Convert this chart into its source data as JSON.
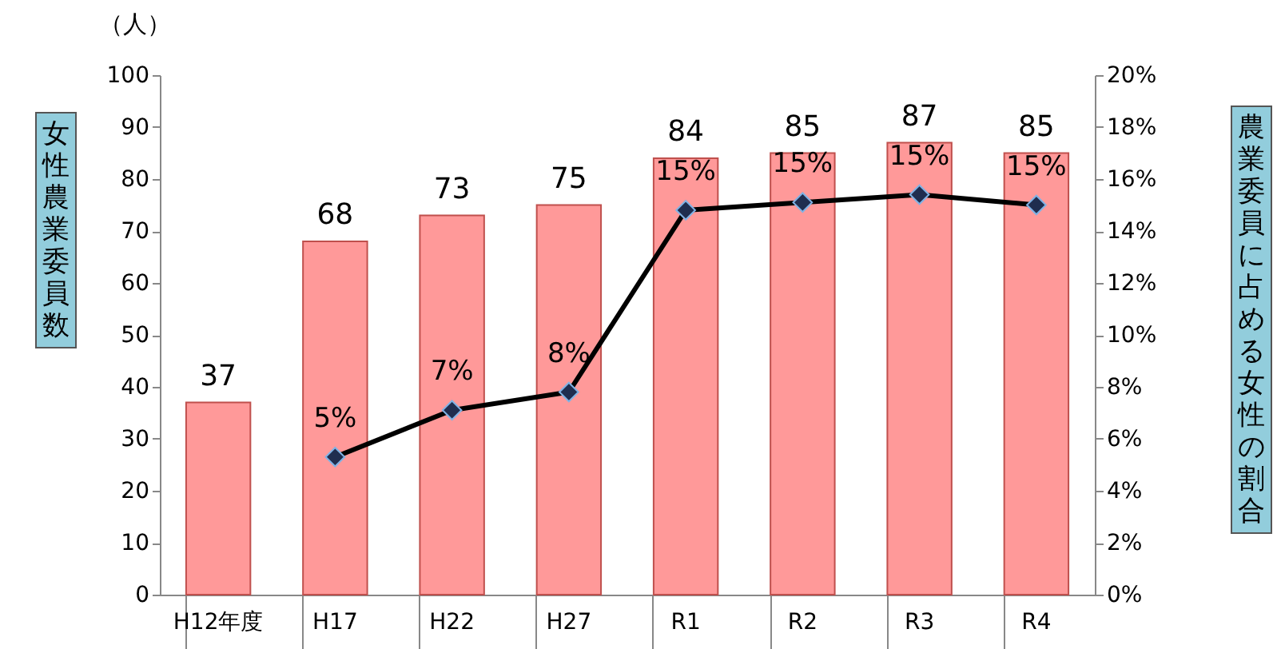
{
  "chart_data": {
    "type": "bar",
    "categories": [
      "H12年度",
      "H17",
      "H22",
      "H27",
      "R1",
      "R2",
      "R3",
      "R4"
    ],
    "ylabel": "女性農業委員数",
    "y2label": "農業委員に占める女性の割合",
    "annotations": [
      "（人）"
    ],
    "ylim": [
      0,
      100
    ],
    "yticks": [
      0,
      10,
      20,
      30,
      40,
      50,
      60,
      70,
      80,
      90,
      100
    ],
    "y2lim": [
      0,
      20
    ],
    "y2ticks": [
      {
        "value": 0,
        "label": "0%"
      },
      {
        "value": 2,
        "label": "2%"
      },
      {
        "value": 4,
        "label": "4%"
      },
      {
        "value": 6,
        "label": "6%"
      },
      {
        "value": 8,
        "label": "8%"
      },
      {
        "value": 10,
        "label": "10%"
      },
      {
        "value": 12,
        "label": "12%"
      },
      {
        "value": 14,
        "label": "14%"
      },
      {
        "value": 16,
        "label": "16%"
      },
      {
        "value": 18,
        "label": "18%"
      },
      {
        "value": 20,
        "label": "20%"
      }
    ],
    "grid": false,
    "marker": "diamond",
    "line_style": "solid",
    "series": [
      {
        "color": "#ff9999",
        "values": [
          37,
          68,
          73,
          75,
          84,
          85,
          87,
          85
        ],
        "value_labels": [
          "37",
          "68",
          "73",
          "75",
          "84",
          "85",
          "87",
          "85"
        ]
      },
      {
        "type": "line",
        "axis": "y2",
        "color": "#000000",
        "values": [
          null,
          5.3,
          7.1,
          7.8,
          14.8,
          15.1,
          15.4,
          15.0
        ],
        "value_labels": [
          null,
          "5%",
          "7%",
          "8%",
          "15%",
          "15%",
          "15%",
          "15%"
        ]
      }
    ]
  }
}
